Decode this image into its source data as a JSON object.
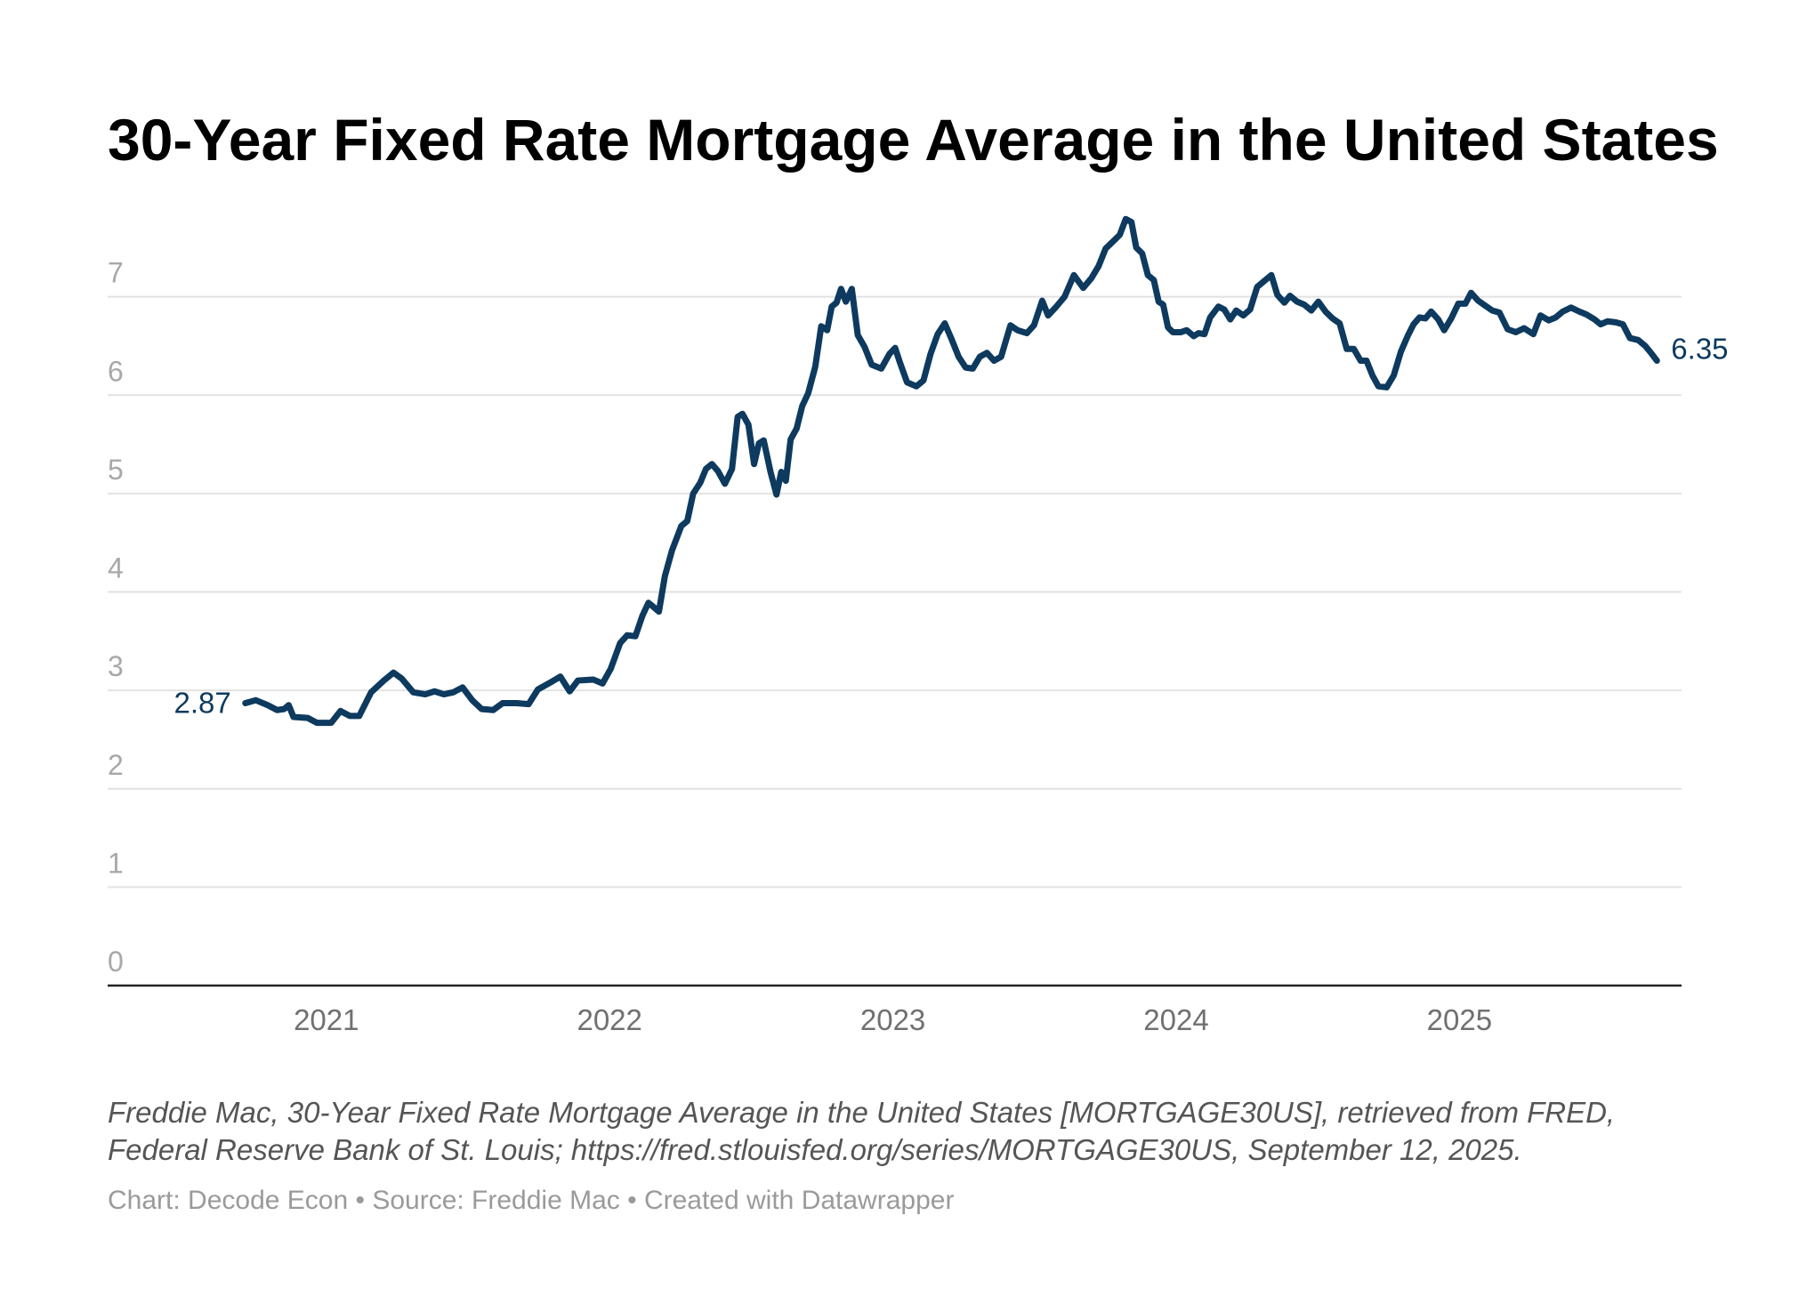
{
  "chart_data": {
    "type": "line",
    "title": "30-Year Fixed Rate Mortgage Average in the United States",
    "notes": [
      "Freddie Mac, 30-Year Fixed Rate Mortgage Average in the United States [MORTGAGE30US], retrieved from FRED,",
      "Federal Reserve Bank of St. Louis; https://fred.stlouisfed.org/series/MORTGAGE30US, September 12, 2025."
    ],
    "credit": "Chart: Decode Econ • Source: Freddie Mac • Created with Datawrapper",
    "color": "#0d3a5e",
    "grid": true,
    "xlim": [
      2020.228,
      2025.784
    ],
    "xticks": [
      2021,
      2022,
      2023,
      2024,
      2025
    ],
    "ylim": [
      0,
      8
    ],
    "yticks": [
      0,
      1,
      2,
      3,
      4,
      5,
      6,
      7
    ],
    "x": [
      2020.714,
      2020.751,
      2020.793,
      2020.826,
      2020.851,
      2020.867,
      2020.884,
      2020.934,
      2020.967,
      2021.017,
      2021.05,
      2021.083,
      2021.116,
      2021.158,
      2021.203,
      2021.237,
      2021.266,
      2021.307,
      2021.349,
      2021.382,
      2021.415,
      2021.448,
      2021.481,
      2021.515,
      2021.548,
      2021.589,
      2021.622,
      2021.672,
      2021.714,
      2021.747,
      2021.797,
      2021.826,
      2021.859,
      2021.888,
      2021.942,
      2021.975,
      2022.004,
      2022.037,
      2022.062,
      2022.091,
      2022.116,
      2022.137,
      2022.154,
      2022.174,
      2022.195,
      2022.22,
      2022.253,
      2022.274,
      2022.295,
      2022.32,
      2022.34,
      2022.361,
      2022.382,
      2022.407,
      2022.432,
      2022.452,
      2022.469,
      2022.49,
      2022.51,
      2022.527,
      2022.544,
      2022.568,
      2022.589,
      2022.606,
      2022.622,
      2022.639,
      2022.66,
      2022.68,
      2022.701,
      2022.726,
      2022.747,
      2022.768,
      2022.784,
      2022.801,
      2022.817,
      2022.834,
      2022.855,
      2022.876,
      2022.9,
      2022.925,
      2022.959,
      2022.988,
      2023.008,
      2023.025,
      2023.05,
      2023.083,
      2023.108,
      2023.133,
      2023.158,
      2023.183,
      2023.207,
      2023.232,
      2023.257,
      2023.282,
      2023.307,
      2023.332,
      2023.357,
      2023.382,
      2023.415,
      2023.44,
      2023.473,
      2023.498,
      2023.527,
      2023.548,
      2023.577,
      2023.606,
      2023.639,
      2023.672,
      2023.701,
      2023.726,
      2023.751,
      2023.78,
      2023.801,
      2023.822,
      2023.842,
      2023.859,
      2023.88,
      2023.9,
      2023.921,
      2023.938,
      2023.954,
      2023.971,
      2023.988,
      2024.017,
      2024.037,
      2024.062,
      2024.079,
      2024.1,
      2024.12,
      2024.149,
      2024.17,
      2024.191,
      2024.212,
      2024.237,
      2024.261,
      2024.286,
      2024.315,
      2024.336,
      2024.357,
      2024.382,
      2024.402,
      2024.427,
      2024.452,
      2024.477,
      2024.502,
      2024.527,
      2024.552,
      2024.577,
      2024.602,
      2024.627,
      2024.651,
      2024.672,
      2024.693,
      2024.714,
      2024.743,
      2024.768,
      2024.793,
      2024.817,
      2024.838,
      2024.859,
      2024.88,
      2024.9,
      2024.925,
      2024.946,
      2024.971,
      2024.996,
      2025.021,
      2025.041,
      2025.066,
      2025.091,
      2025.116,
      2025.141,
      2025.17,
      2025.199,
      2025.228,
      2025.261,
      2025.286,
      2025.315,
      2025.34,
      2025.365,
      2025.394,
      2025.423,
      2025.448,
      2025.477,
      2025.498,
      2025.523,
      2025.552,
      2025.577,
      2025.602,
      2025.631,
      2025.656,
      2025.676,
      2025.697
    ],
    "values": [
      2.87,
      2.9,
      2.85,
      2.8,
      2.81,
      2.85,
      2.73,
      2.72,
      2.67,
      2.67,
      2.79,
      2.74,
      2.74,
      2.98,
      3.1,
      3.18,
      3.12,
      2.98,
      2.96,
      2.99,
      2.96,
      2.98,
      3.03,
      2.9,
      2.81,
      2.8,
      2.87,
      2.87,
      2.86,
      3.01,
      3.09,
      3.14,
      2.99,
      3.1,
      3.11,
      3.07,
      3.22,
      3.48,
      3.56,
      3.55,
      3.76,
      3.89,
      3.85,
      3.8,
      4.16,
      4.42,
      4.67,
      4.72,
      5.0,
      5.11,
      5.25,
      5.3,
      5.23,
      5.1,
      5.25,
      5.78,
      5.81,
      5.7,
      5.3,
      5.51,
      5.54,
      5.22,
      4.99,
      5.22,
      5.13,
      5.55,
      5.66,
      5.89,
      6.02,
      6.29,
      6.7,
      6.66,
      6.9,
      6.94,
      7.08,
      6.95,
      7.08,
      6.61,
      6.49,
      6.31,
      6.27,
      6.42,
      6.48,
      6.33,
      6.13,
      6.09,
      6.15,
      6.42,
      6.62,
      6.73,
      6.57,
      6.39,
      6.28,
      6.27,
      6.39,
      6.43,
      6.35,
      6.39,
      6.71,
      6.66,
      6.63,
      6.71,
      6.96,
      6.81,
      6.9,
      7.0,
      7.22,
      7.09,
      7.19,
      7.31,
      7.49,
      7.57,
      7.63,
      7.79,
      7.76,
      7.5,
      7.44,
      7.22,
      7.17,
      6.95,
      6.92,
      6.69,
      6.64,
      6.64,
      6.66,
      6.6,
      6.63,
      6.62,
      6.79,
      6.9,
      6.87,
      6.77,
      6.86,
      6.81,
      6.87,
      7.1,
      7.17,
      7.22,
      7.02,
      6.94,
      7.01,
      6.95,
      6.92,
      6.86,
      6.95,
      6.85,
      6.78,
      6.73,
      6.47,
      6.47,
      6.35,
      6.35,
      6.2,
      6.09,
      6.08,
      6.2,
      6.44,
      6.6,
      6.72,
      6.79,
      6.78,
      6.85,
      6.77,
      6.66,
      6.78,
      6.93,
      6.93,
      7.04,
      6.96,
      6.91,
      6.86,
      6.84,
      6.67,
      6.64,
      6.68,
      6.62,
      6.81,
      6.76,
      6.79,
      6.85,
      6.89,
      6.85,
      6.82,
      6.77,
      6.72,
      6.75,
      6.74,
      6.72,
      6.58,
      6.56,
      6.5,
      6.43,
      6.35
    ]
  }
}
